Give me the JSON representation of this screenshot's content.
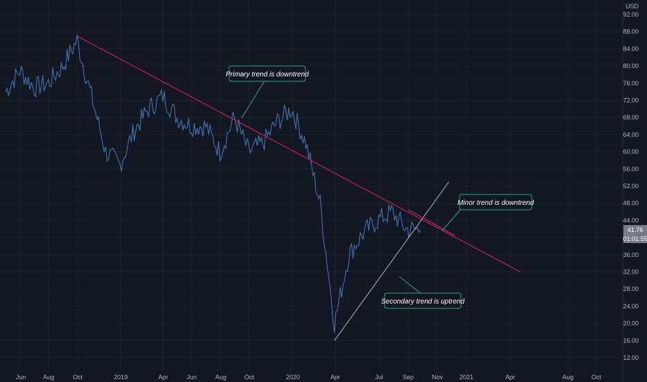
{
  "chart_data": {
    "type": "line",
    "title": "",
    "currency_label": "USD",
    "ylim": [
      10,
      95
    ],
    "x_ticks": [
      "Jun",
      "Aug",
      "Oct",
      "2019",
      "Apr",
      "Jun",
      "Aug",
      "Oct",
      "2020",
      "Apr",
      "Jul",
      "Sep",
      "Nov",
      "2021",
      "Apr",
      "Aug",
      "Oct"
    ],
    "y_ticks": [
      "92.00",
      "88.00",
      "84.00",
      "80.00",
      "76.00",
      "72.00",
      "68.00",
      "64.00",
      "60.00",
      "56.00",
      "52.00",
      "48.00",
      "44.00",
      "40.00",
      "36.00",
      "32.00",
      "28.00",
      "24.00",
      "20.00",
      "16.00",
      "12.00"
    ],
    "series": [
      {
        "values_x": [
          "2018-05",
          "2018-06",
          "2018-07",
          "2018-08",
          "2018-09",
          "2018-10",
          "2018-11",
          "2018-12",
          "2019-01",
          "2019-02",
          "2019-03",
          "2019-04",
          "2019-05",
          "2019-06",
          "2019-07",
          "2019-08",
          "2019-09",
          "2019-10",
          "2019-11",
          "2019-12",
          "2020-01",
          "2020-02",
          "2020-03",
          "2020-04",
          "2020-05",
          "2020-06",
          "2020-07",
          "2020-08",
          "2020-09",
          "2020-10"
        ],
        "values_y": [
          74,
          79,
          75,
          76,
          80,
          86,
          73,
          60,
          57,
          65,
          70,
          73,
          68,
          66,
          66,
          60,
          68,
          60,
          62,
          67,
          70,
          62,
          48,
          20,
          36,
          41,
          44,
          46,
          42,
          41.76
        ],
        "color": "#3d6ea8"
      }
    ],
    "last_price": "41.76",
    "countdown": "01:01:55",
    "trendlines": [
      {
        "color": "#e91e63",
        "from": [
          "2018-10",
          87
        ],
        "to": [
          "2021-05",
          32
        ]
      },
      {
        "color": "#b2b5be",
        "from": [
          "2020-04",
          16
        ],
        "to": [
          "2020-12",
          53
        ]
      }
    ],
    "annotations": [
      {
        "text": "Primary trend is downtrend"
      },
      {
        "text": "Minor trend is downtrend"
      },
      {
        "text": "Secondary trend is uptrend"
      }
    ]
  },
  "colors": {
    "background": "#131722",
    "price_label_bg": "#787b86",
    "annotation_border": "#26a69a",
    "annotation_bg": "#131722"
  }
}
